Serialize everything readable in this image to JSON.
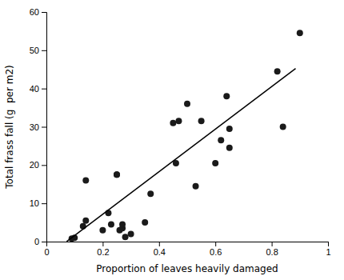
{
  "chart_data": {
    "type": "scatter",
    "x_label": "Proportion of leaves heavily damaged",
    "y_label": "Total frass fall (g  per m2)",
    "xlim": [
      0.0,
      1.0
    ],
    "ylim": [
      0,
      60
    ],
    "xticks": [
      0,
      0.2,
      0.4,
      0.6,
      0.8,
      1
    ],
    "yticks": [
      0,
      10,
      20,
      30,
      40,
      50,
      60
    ],
    "grid": false,
    "series": [
      {
        "type": "scatter",
        "color": "#1a1a1a",
        "x": [
          0.09,
          0.1,
          0.13,
          0.14,
          0.14,
          0.2,
          0.22,
          0.23,
          0.25,
          0.25,
          0.26,
          0.27,
          0.27,
          0.28,
          0.3,
          0.35,
          0.37,
          0.45,
          0.46,
          0.47,
          0.5,
          0.53,
          0.55,
          0.6,
          0.62,
          0.64,
          0.65,
          0.65,
          0.82,
          0.84,
          0.9
        ],
        "values": [
          0.8,
          1.0,
          4.0,
          5.5,
          16.0,
          3.0,
          7.5,
          4.5,
          17.5,
          17.5,
          3.0,
          3.5,
          4.5,
          1.2,
          2.0,
          5.0,
          12.5,
          31.0,
          20.5,
          31.5,
          36.0,
          14.5,
          31.5,
          20.5,
          26.5,
          38.0,
          29.5,
          24.5,
          44.5,
          30.0,
          54.5
        ]
      },
      {
        "type": "line",
        "color": "#000000",
        "x": [
          0.072,
          0.885
        ],
        "values": [
          0.0232,
          45.226
        ]
      }
    ]
  }
}
